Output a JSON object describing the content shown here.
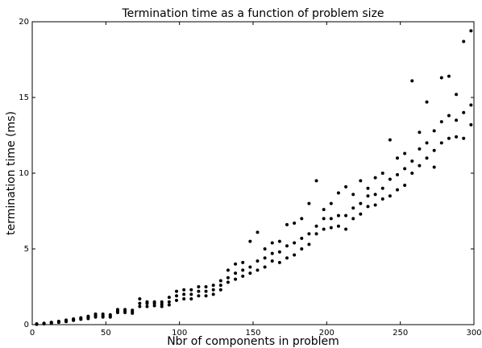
{
  "chart_data": {
    "type": "scatter",
    "title": "Termination time as a function of problem size",
    "x_label": "Nbr of components in problem",
    "y_label": "termination time (ms)",
    "color": "#000000",
    "xlim": [
      0,
      300
    ],
    "xticks": [
      0,
      50,
      100,
      150,
      200,
      250,
      300
    ],
    "ylim": [
      0,
      20
    ],
    "yticks": [
      0,
      5,
      10,
      15,
      20
    ],
    "x": [
      3,
      3,
      3,
      8,
      8,
      8,
      13,
      13,
      13,
      18,
      18,
      18,
      23,
      23,
      23,
      28,
      28,
      28,
      33,
      33,
      33,
      38,
      38,
      38,
      43,
      43,
      43,
      48,
      48,
      48,
      53,
      53,
      53,
      58,
      58,
      58,
      63,
      63,
      63,
      68,
      68,
      68,
      73,
      73,
      73,
      78,
      78,
      78,
      83,
      83,
      83,
      88,
      88,
      88,
      93,
      93,
      93,
      98,
      98,
      98,
      103,
      103,
      103,
      108,
      108,
      108,
      113,
      113,
      113,
      118,
      118,
      118,
      123,
      123,
      123,
      128,
      128,
      128,
      133,
      133,
      133,
      138,
      138,
      138,
      143,
      143,
      143,
      148,
      148,
      148,
      153,
      153,
      153,
      158,
      158,
      158,
      163,
      163,
      163,
      168,
      168,
      168,
      173,
      173,
      173,
      178,
      178,
      178,
      183,
      183,
      183,
      188,
      188,
      188,
      193,
      193,
      193,
      198,
      198,
      198,
      203,
      203,
      203,
      208,
      208,
      208,
      213,
      213,
      213,
      218,
      218,
      218,
      223,
      223,
      223,
      228,
      228,
      228,
      233,
      233,
      233,
      238,
      238,
      238,
      243,
      243,
      243,
      248,
      248,
      248,
      253,
      253,
      253,
      258,
      258,
      258,
      263,
      263,
      263,
      268,
      268,
      268,
      273,
      273,
      273,
      278,
      278,
      278,
      283,
      283,
      283,
      288,
      288,
      288,
      293,
      293,
      293,
      298,
      298,
      298
    ],
    "values": [
      0.02,
      0.03,
      0.05,
      0.05,
      0.07,
      0.09,
      0.1,
      0.13,
      0.15,
      0.15,
      0.2,
      0.22,
      0.2,
      0.25,
      0.3,
      0.28,
      0.33,
      0.38,
      0.35,
      0.4,
      0.45,
      0.4,
      0.48,
      0.55,
      0.5,
      0.6,
      0.7,
      0.5,
      0.6,
      0.7,
      0.5,
      0.55,
      0.65,
      0.8,
      0.9,
      1.0,
      0.8,
      0.9,
      1.0,
      0.75,
      0.85,
      0.95,
      1.2,
      1.4,
      1.7,
      1.2,
      1.4,
      1.5,
      1.25,
      1.4,
      1.5,
      1.2,
      1.35,
      1.5,
      1.3,
      1.5,
      1.8,
      1.6,
      1.9,
      2.2,
      1.7,
      2.0,
      2.3,
      1.7,
      2.0,
      2.3,
      1.9,
      2.2,
      2.5,
      1.9,
      2.2,
      2.5,
      2.0,
      2.3,
      2.6,
      2.3,
      2.6,
      2.9,
      2.8,
      3.1,
      3.6,
      3.0,
      3.4,
      4.0,
      3.2,
      3.6,
      4.1,
      3.4,
      3.8,
      5.5,
      3.6,
      4.2,
      6.1,
      3.8,
      4.4,
      5.0,
      4.2,
      4.7,
      5.4,
      4.1,
      4.8,
      5.5,
      4.4,
      5.2,
      6.6,
      4.6,
      5.4,
      6.7,
      5.0,
      5.7,
      7.0,
      5.3,
      6.0,
      8.0,
      6.0,
      6.5,
      9.5,
      6.3,
      7.0,
      7.6,
      6.4,
      7.0,
      8.0,
      6.5,
      7.2,
      8.7,
      6.3,
      7.2,
      9.1,
      7.0,
      7.7,
      8.6,
      7.3,
      8.0,
      9.5,
      7.8,
      8.5,
      9.0,
      7.9,
      8.6,
      9.7,
      8.3,
      9.0,
      10.0,
      8.5,
      9.6,
      12.2,
      8.9,
      9.9,
      11.0,
      9.2,
      10.3,
      11.3,
      10.0,
      10.8,
      16.1,
      10.5,
      11.6,
      12.7,
      11.0,
      12.0,
      14.7,
      10.4,
      11.5,
      12.8,
      12.0,
      13.4,
      16.3,
      12.3,
      13.8,
      16.4,
      12.4,
      13.5,
      15.2,
      12.3,
      14.0,
      18.7,
      13.2,
      14.5,
      19.4
    ]
  }
}
